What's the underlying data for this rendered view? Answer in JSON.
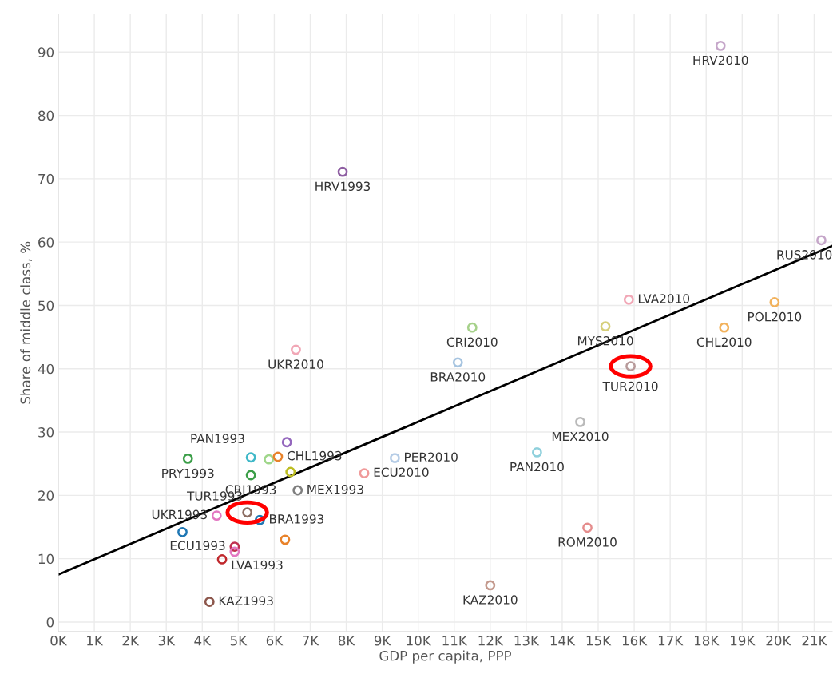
{
  "chart_data": {
    "type": "scatter",
    "xlabel": "GDP per capita, PPP",
    "ylabel": "Share of middle class, %",
    "xlim": [
      0,
      21.5
    ],
    "ylim": [
      -1.5,
      96
    ],
    "xticks": [
      {
        "value": 0,
        "label": "0K"
      },
      {
        "value": 1,
        "label": "1K"
      },
      {
        "value": 2,
        "label": "2K"
      },
      {
        "value": 3,
        "label": "3K"
      },
      {
        "value": 4,
        "label": "4K"
      },
      {
        "value": 5,
        "label": "5K"
      },
      {
        "value": 6,
        "label": "6K"
      },
      {
        "value": 7,
        "label": "7K"
      },
      {
        "value": 8,
        "label": "8K"
      },
      {
        "value": 9,
        "label": "9K"
      },
      {
        "value": 10,
        "label": "10K"
      },
      {
        "value": 11,
        "label": "11K"
      },
      {
        "value": 12,
        "label": "12K"
      },
      {
        "value": 13,
        "label": "13K"
      },
      {
        "value": 14,
        "label": "14K"
      },
      {
        "value": 15,
        "label": "15K"
      },
      {
        "value": 16,
        "label": "16K"
      },
      {
        "value": 17,
        "label": "17K"
      },
      {
        "value": 18,
        "label": "18K"
      },
      {
        "value": 19,
        "label": "19K"
      },
      {
        "value": 20,
        "label": "20K"
      },
      {
        "value": 21,
        "label": "21K"
      }
    ],
    "yticks": [
      0,
      10,
      20,
      30,
      40,
      50,
      60,
      70,
      80,
      90
    ],
    "grid": true,
    "legend": false,
    "marker": "circle",
    "series": [
      {
        "name": "HRV2010",
        "color": "#c5a6c9",
        "x": [
          18.4
        ],
        "values": [
          91.0
        ]
      },
      {
        "name": "HRV1993",
        "color": "#8e5ea2",
        "x": [
          7.9
        ],
        "values": [
          71.1
        ]
      },
      {
        "name": "RUS2010",
        "color": "#c5a6c9",
        "x": [
          21.2
        ],
        "values": [
          60.3
        ]
      },
      {
        "name": "LVA2010",
        "color": "#f1a7b6",
        "x": [
          15.85
        ],
        "values": [
          50.9
        ]
      },
      {
        "name": "POL2010",
        "color": "#f2b25c",
        "x": [
          19.9
        ],
        "values": [
          50.5
        ]
      },
      {
        "name": "MYS2010",
        "color": "#d6cf7a",
        "x": [
          15.2
        ],
        "values": [
          46.7
        ]
      },
      {
        "name": "CHL2010",
        "color": "#f2b25c",
        "x": [
          18.5
        ],
        "values": [
          46.5
        ]
      },
      {
        "name": "CRI2010",
        "color": "#a6d18a",
        "x": [
          11.5
        ],
        "values": [
          46.5
        ]
      },
      {
        "name": "UKR2010",
        "color": "#f1a7b6",
        "x": [
          6.6
        ],
        "values": [
          43.0
        ]
      },
      {
        "name": "BRA2010",
        "color": "#a6c4e0",
        "x": [
          11.1
        ],
        "values": [
          41.0
        ]
      },
      {
        "name": "TUR2010",
        "color": "#b79a9a",
        "x": [
          15.9
        ],
        "values": [
          40.4
        ]
      },
      {
        "name": "MEX2010",
        "color": "#bababa",
        "x": [
          14.5
        ],
        "values": [
          31.6
        ]
      },
      {
        "name": "PAN2010",
        "color": "#8fd0dc",
        "x": [
          13.3
        ],
        "values": [
          26.8
        ]
      },
      {
        "name": "PER2010",
        "color": "#b5cce6",
        "x": [
          9.35
        ],
        "values": [
          25.9
        ]
      },
      {
        "name": "ECU2010",
        "color": "#f09a9a",
        "x": [
          8.5
        ],
        "values": [
          23.5
        ]
      },
      {
        "name": "ROM2010",
        "color": "#e58d8d",
        "x": [
          14.7
        ],
        "values": [
          14.9
        ]
      },
      {
        "name": "KAZ2010",
        "color": "#c49a8e",
        "x": [
          12.0
        ],
        "values": [
          5.8
        ]
      },
      {
        "name": "PAN1993",
        "color": "#3fb8c8",
        "x": [
          5.35
        ],
        "values": [
          26.0
        ]
      },
      {
        "name": "PRY1993",
        "color": "#3b9e48",
        "x": [
          3.6
        ],
        "values": [
          25.8
        ]
      },
      {
        "color": "#9467bd",
        "x": [
          6.35
        ],
        "values": [
          28.4
        ]
      },
      {
        "color": "#9fd68a",
        "x": [
          5.85
        ],
        "values": [
          25.7
        ]
      },
      {
        "name": "CHL1993",
        "color": "#e8822a",
        "x": [
          6.1
        ],
        "values": [
          26.1
        ]
      },
      {
        "color": "#bcbd22",
        "x": [
          6.45
        ],
        "values": [
          23.7
        ]
      },
      {
        "name": "CRI1993",
        "color": "#3b9e48",
        "x": [
          5.35
        ],
        "values": [
          23.2
        ]
      },
      {
        "name": "MEX1993",
        "color": "#7f7f7f",
        "x": [
          6.65
        ],
        "values": [
          20.8
        ]
      },
      {
        "name": "TUR1993",
        "color": "#8c6d62",
        "x": [
          5.25
        ],
        "values": [
          17.3
        ]
      },
      {
        "name": "UKR1993",
        "color": "#e377c2",
        "x": [
          4.4
        ],
        "values": [
          16.8
        ]
      },
      {
        "name": "BRA1993",
        "color": "#1f77b4",
        "x": [
          5.6
        ],
        "values": [
          16.1
        ]
      },
      {
        "color": "#1f77b4",
        "x": [
          3.45
        ],
        "values": [
          14.2
        ]
      },
      {
        "color": "#e8822a",
        "x": [
          6.3
        ],
        "values": [
          13.0
        ]
      },
      {
        "name": "ECU1993",
        "color": "#c03050",
        "x": [
          4.9
        ],
        "values": [
          11.9
        ]
      },
      {
        "color": "#e377c2",
        "x": [
          4.9
        ],
        "values": [
          11.1
        ]
      },
      {
        "name": "LVA1993",
        "color": "#c0282d",
        "x": [
          4.55
        ],
        "values": [
          9.9
        ]
      },
      {
        "name": "KAZ1993",
        "color": "#8c564b",
        "x": [
          4.2
        ],
        "values": [
          3.2
        ]
      },
      {
        "type": "line",
        "marker": "none",
        "color": "#000000",
        "x": [
          0,
          21.5
        ],
        "values": [
          7.5,
          59.4
        ]
      }
    ]
  }
}
